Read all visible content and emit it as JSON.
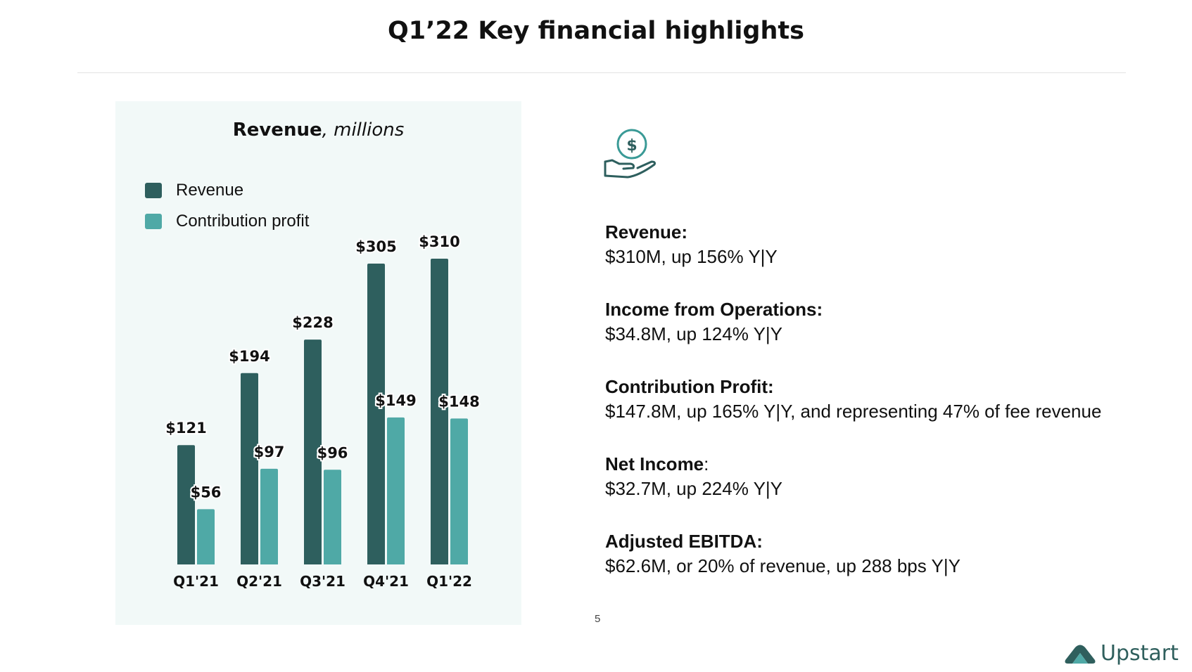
{
  "slide": {
    "title": "Q1’22 Key financial highlights",
    "page_number": "5"
  },
  "chart_panel": {
    "title_bold": "Revenue",
    "title_italic": ", millions",
    "legend": [
      {
        "label": "Revenue",
        "color": "#2e5f5e"
      },
      {
        "label": "Contribution profit",
        "color": "#4fa9a6"
      }
    ]
  },
  "chart_data": {
    "type": "bar",
    "title": "Revenue, millions",
    "categories": [
      "Q1'21",
      "Q2'21",
      "Q3'21",
      "Q4'21",
      "Q1'22"
    ],
    "series": [
      {
        "name": "Revenue",
        "color": "#2e5f5e",
        "values": [
          121,
          194,
          228,
          305,
          310
        ],
        "labels": [
          "$121",
          "$194",
          "$228",
          "$305",
          "$310"
        ]
      },
      {
        "name": "Contribution profit",
        "color": "#4fa9a6",
        "values": [
          56,
          97,
          96,
          149,
          148
        ],
        "labels": [
          "$56",
          "$97",
          "$96",
          "$149",
          "$148"
        ]
      }
    ],
    "ylim": [
      0,
      310
    ],
    "grid": false,
    "legend_position": "top-left",
    "xlabel": "",
    "ylabel": ""
  },
  "highlights_icon": "money-hand-icon",
  "highlights": [
    {
      "label": "Revenue:",
      "value": "$310M, up 156% Y|Y"
    },
    {
      "label": "Income from Operations:",
      "value": "$34.8M, up 124% Y|Y"
    },
    {
      "label": "Contribution Profit:",
      "value": "$147.8M, up 165% Y|Y, and representing 47% of fee revenue"
    },
    {
      "label": "Net Income",
      "label_suffix": ":",
      "value": "$32.7M, up 224% Y|Y"
    },
    {
      "label": "Adjusted EBITDA:",
      "value": "$62.6M, or 20% of revenue, up 288 bps Y|Y"
    }
  ],
  "brand": {
    "name": "Upstart",
    "icon": "upstart-logo-icon",
    "color": "#2f5f5d",
    "accent": "#4fa9a6"
  }
}
